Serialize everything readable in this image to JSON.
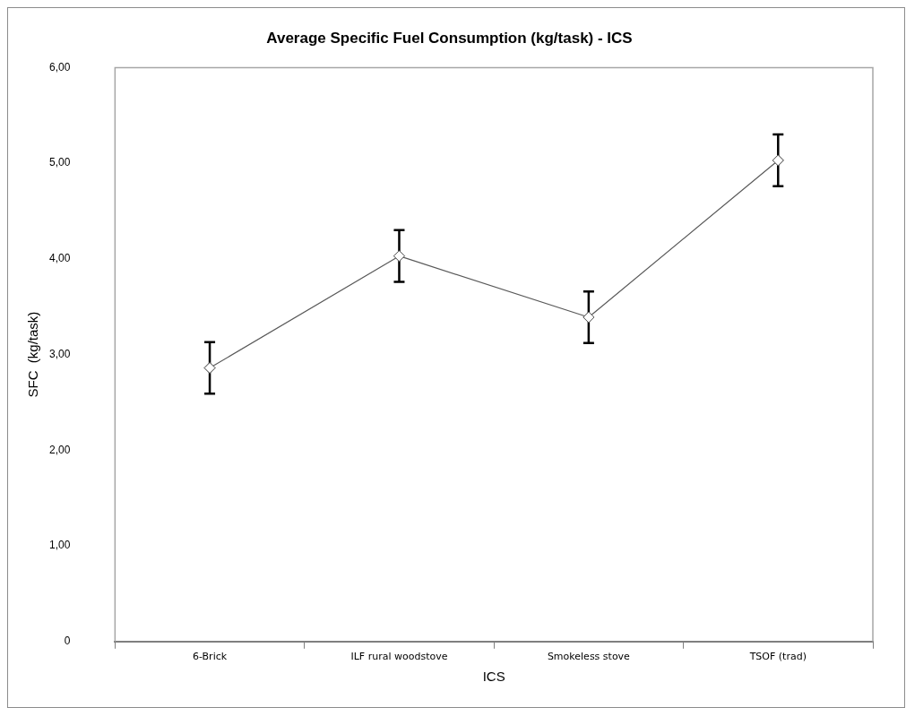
{
  "chart_data": {
    "type": "line",
    "title": "Average Specific Fuel Consumption (kg/task) - ICS",
    "xlabel": "ICS",
    "ylabel": "SFC  (kg/task)",
    "categories": [
      "6-Brick",
      "ILF rural woodstove",
      "Smokeless stove",
      "TSOF (trad)"
    ],
    "series": [
      {
        "color": "#595959",
        "values": [
          2.86,
          4.03,
          3.39,
          5.03
        ],
        "errors": [
          0.27,
          0.27,
          0.27,
          0.27
        ]
      }
    ],
    "ylim": [
      0,
      6
    ],
    "yticks": [
      0,
      {
        "value": 1,
        "label": "1,00"
      },
      {
        "value": 2,
        "label": "2,00"
      },
      {
        "value": 3,
        "label": "3,00"
      },
      {
        "value": 4,
        "label": "4,00"
      },
      {
        "value": 5,
        "label": "5,00"
      },
      {
        "value": 6,
        "label": "6,00"
      }
    ],
    "grid": false,
    "legend": false,
    "marker": "diamond",
    "line_style": "solid"
  }
}
